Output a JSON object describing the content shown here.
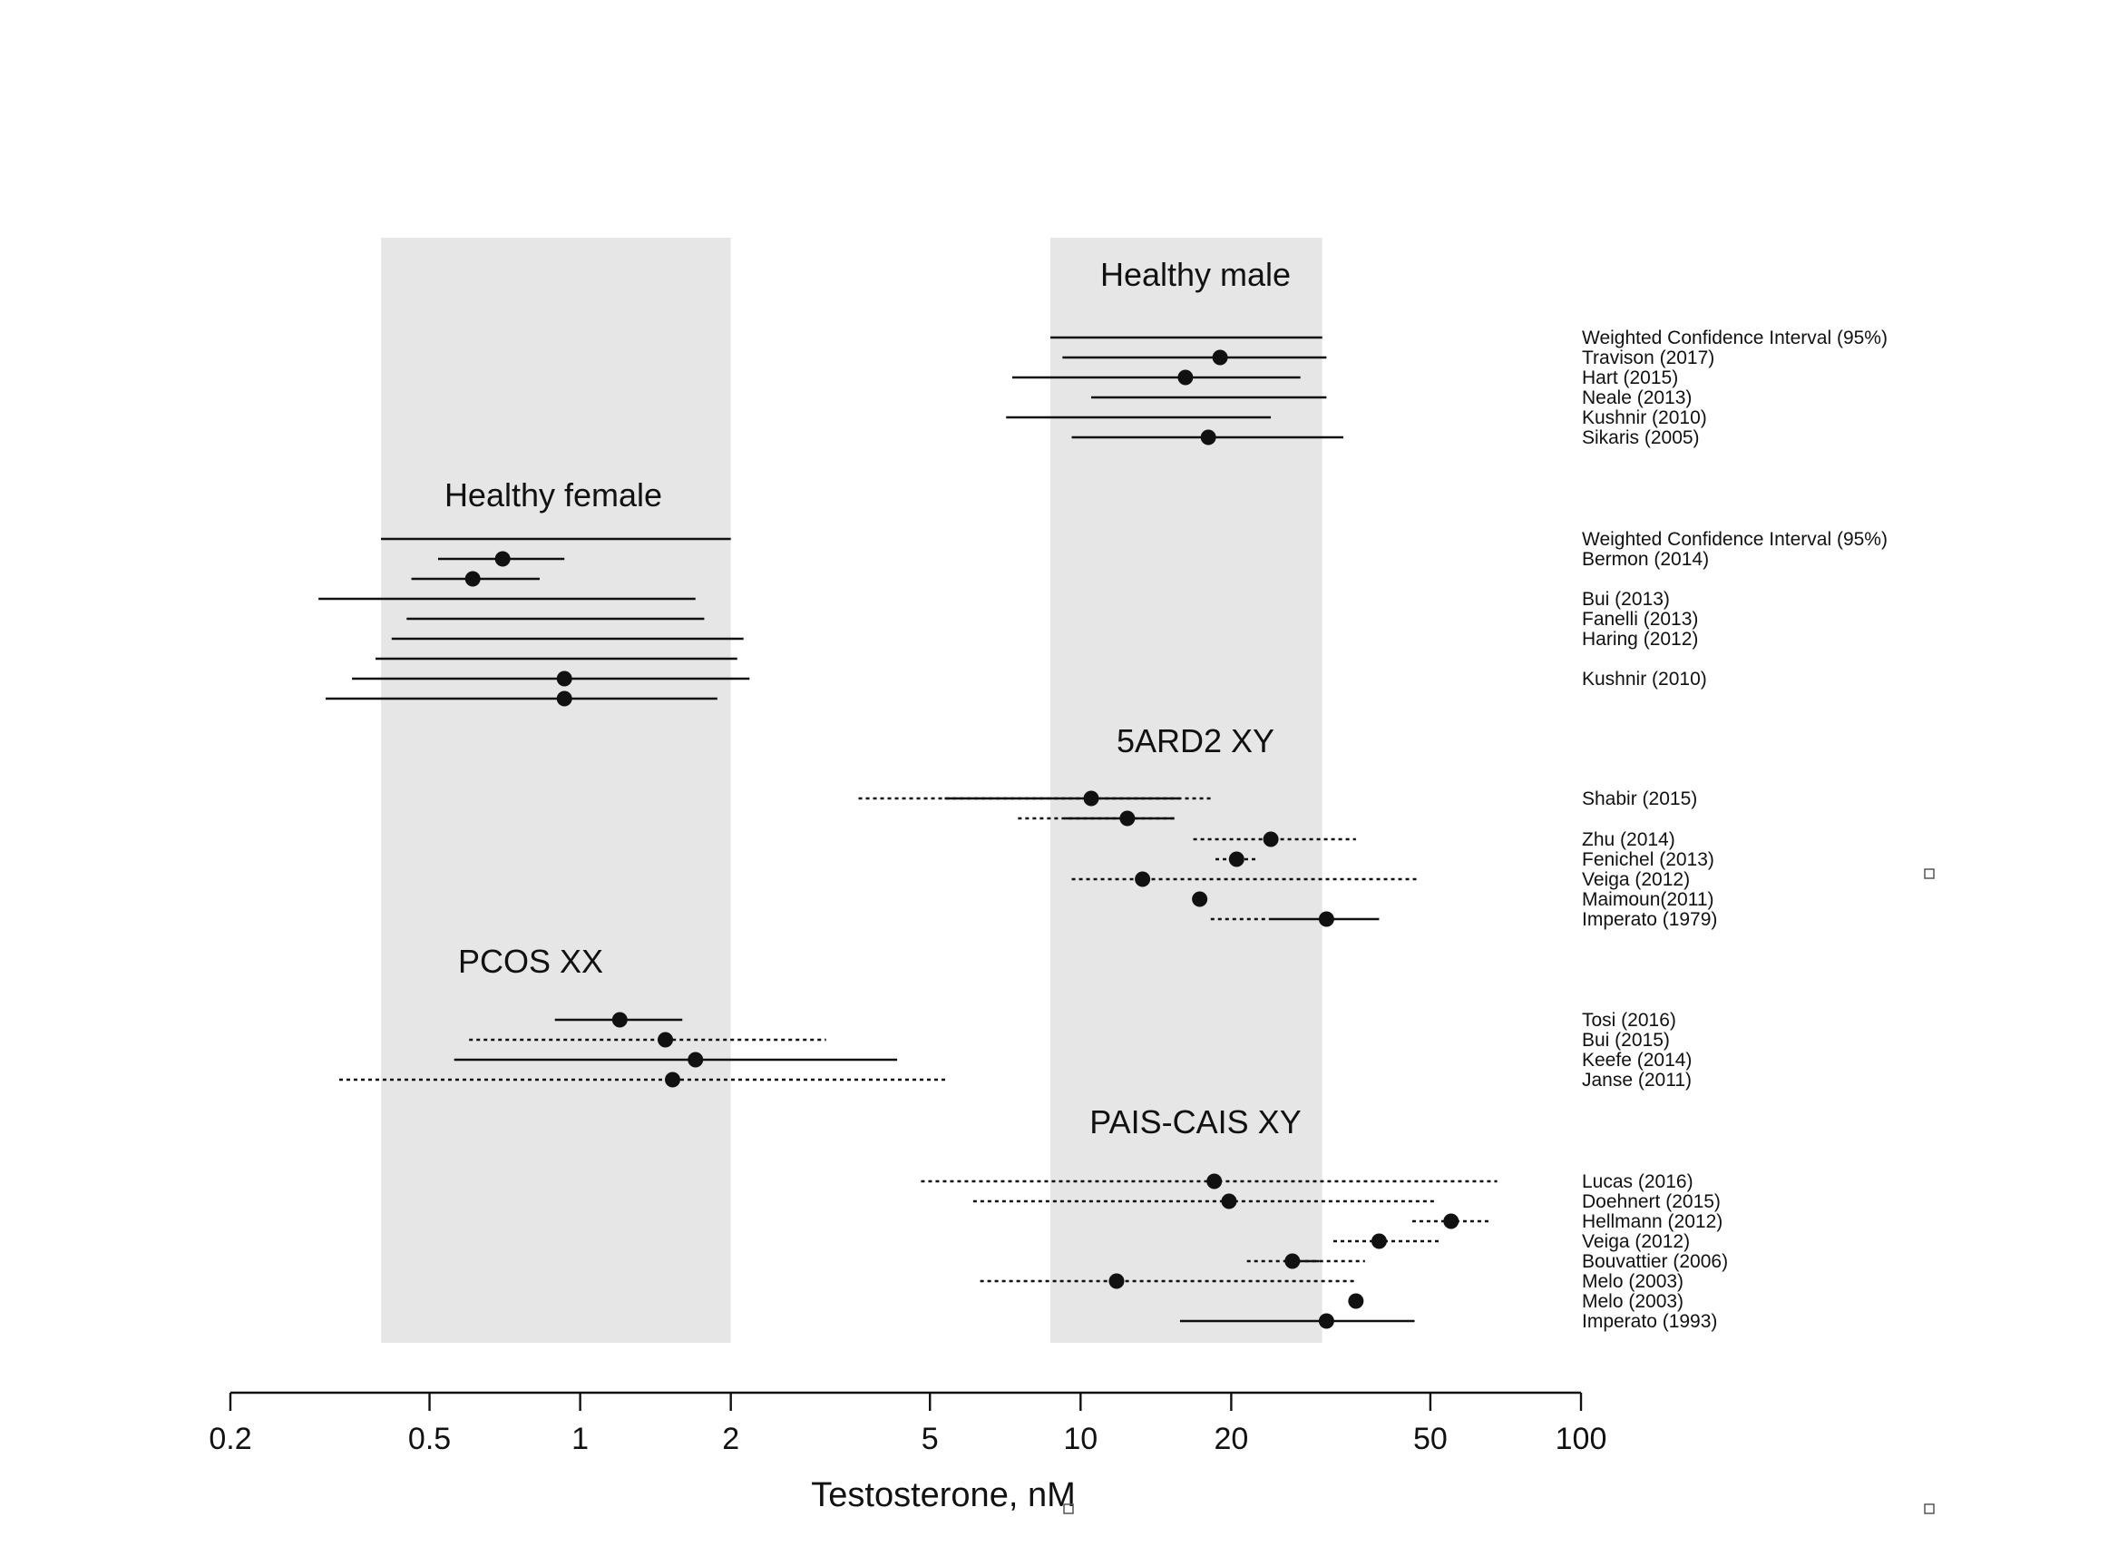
{
  "chart_data": {
    "type": "forest",
    "xlabel": "Testosterone, nM",
    "xscale": "log",
    "xlim": [
      0.2,
      100
    ],
    "xticks": [
      0.2,
      0.5,
      1,
      2,
      5,
      10,
      20,
      50,
      100
    ],
    "xtick_labels": [
      "0.2",
      "0.5",
      "1",
      "2",
      "5",
      "10",
      "20",
      "50",
      "100"
    ],
    "bands": [
      {
        "name": "healthy-female-range",
        "range": [
          0.4,
          2.0
        ],
        "color": "#e6e6e6"
      },
      {
        "name": "healthy-male-range",
        "range": [
          8.7,
          30.4
        ],
        "color": "#e6e6e6"
      }
    ],
    "groups": [
      {
        "name": "Healthy male",
        "rows": [
          {
            "label": "Weighted Confidence Interval (95%)",
            "point": null,
            "solid": [
              8.7,
              30.4
            ],
            "dotted": null
          },
          {
            "label": "Travison (2017)",
            "point": 19.0,
            "solid": [
              9.2,
              31.0
            ],
            "dotted": null
          },
          {
            "label": "Hart (2015)",
            "point": 16.2,
            "solid": [
              7.3,
              27.5
            ],
            "dotted": null
          },
          {
            "label": "Neale (2013)",
            "point": null,
            "solid": [
              10.5,
              31.0
            ],
            "dotted": null
          },
          {
            "label": "Kushnir (2010)",
            "point": null,
            "solid": [
              7.1,
              24.0
            ],
            "dotted": null
          },
          {
            "label": "Sikaris (2005)",
            "point": 18.0,
            "solid": [
              9.6,
              33.5
            ],
            "dotted": null
          }
        ]
      },
      {
        "name": "Healthy female",
        "rows": [
          {
            "label": "Weighted Confidence Interval (95%)",
            "point": null,
            "solid": [
              0.4,
              2.0
            ],
            "dotted": null
          },
          {
            "label": "Bermon (2014)",
            "point": 0.7,
            "solid": [
              0.52,
              0.93
            ],
            "dotted": null
          },
          {
            "label": "",
            "point": 0.61,
            "solid": [
              0.46,
              0.83
            ],
            "dotted": null
          },
          {
            "label": "Bui (2013)",
            "point": null,
            "solid": [
              0.3,
              1.7
            ],
            "dotted": null
          },
          {
            "label": "Fanelli (2013)",
            "point": null,
            "solid": [
              0.45,
              1.77
            ],
            "dotted": null
          },
          {
            "label": "Haring (2012)",
            "point": null,
            "solid": [
              0.42,
              2.12
            ],
            "dotted": null
          },
          {
            "label": "",
            "point": null,
            "solid": [
              0.39,
              2.06
            ],
            "dotted": null
          },
          {
            "label": "Kushnir (2010)",
            "point": 0.93,
            "solid": [
              0.35,
              2.18
            ],
            "dotted": null
          },
          {
            "label": "",
            "point": 0.93,
            "solid": [
              0.31,
              1.88
            ],
            "dotted": null
          }
        ]
      },
      {
        "name": "5ARD2 XY",
        "rows": [
          {
            "label": "Shabir (2015)",
            "point": 10.5,
            "solid": [
              5.35,
              15.8
            ],
            "dotted": [
              3.6,
              18.3
            ]
          },
          {
            "label": "",
            "point": 12.4,
            "solid": [
              9.3,
              15.4
            ],
            "dotted": [
              7.5,
              15.4
            ]
          },
          {
            "label": "Zhu (2014)",
            "point": 24.0,
            "solid": null,
            "dotted": [
              16.8,
              35.5
            ]
          },
          {
            "label": "Fenichel (2013)",
            "point": 20.5,
            "solid": null,
            "dotted": [
              18.6,
              22.4
            ]
          },
          {
            "label": "Veiga (2012)",
            "point": 13.3,
            "solid": null,
            "dotted": [
              9.6,
              47.5
            ]
          },
          {
            "label": "Maimoun(2011)",
            "point": 17.3,
            "solid": null,
            "dotted": null
          },
          {
            "label": "Imperato (1979)",
            "point": 31.0,
            "solid": [
              23.8,
              39.5
            ],
            "dotted": [
              18.2,
              23.8
            ]
          }
        ]
      },
      {
        "name": "PCOS XX",
        "rows": [
          {
            "label": "Tosi (2016)",
            "point": 1.2,
            "solid": [
              0.89,
              1.6
            ],
            "dotted": null
          },
          {
            "label": "Bui (2015)",
            "point": 1.48,
            "solid": null,
            "dotted": [
              0.6,
              3.1
            ]
          },
          {
            "label": "Keefe (2014)",
            "point": 1.7,
            "solid": [
              0.56,
              4.3
            ],
            "dotted": null
          },
          {
            "label": "Janse (2011)",
            "point": 1.53,
            "solid": null,
            "dotted": [
              0.33,
              5.4
            ]
          }
        ]
      },
      {
        "name": "PAIS-CAIS XY",
        "rows": [
          {
            "label": "Lucas (2016)",
            "point": 18.5,
            "solid": null,
            "dotted": [
              4.8,
              68.0
            ]
          },
          {
            "label": "Doehnert (2015)",
            "point": 19.8,
            "solid": null,
            "dotted": [
              6.1,
              51.0
            ]
          },
          {
            "label": "Hellmann (2012)",
            "point": 55.0,
            "solid": null,
            "dotted": [
              46.0,
              66.0
            ]
          },
          {
            "label": "Veiga (2012)",
            "point": 39.5,
            "solid": null,
            "dotted": [
              32.0,
              52.0
            ]
          },
          {
            "label": "Bouvattier (2006)",
            "point": 26.5,
            "solid": [
              26.5,
              30.0
            ],
            "dotted": [
              21.5,
              37.0
            ]
          },
          {
            "label": "Melo (2003)",
            "point": 11.8,
            "solid": null,
            "dotted": [
              6.3,
              35.5
            ]
          },
          {
            "label": "Melo (2003)",
            "point": 35.5,
            "solid": null,
            "dotted": null
          },
          {
            "label": "Imperato  (1993)",
            "point": 31.0,
            "solid": [
              15.8,
              46.5
            ],
            "dotted": null
          }
        ]
      }
    ],
    "title": ""
  }
}
